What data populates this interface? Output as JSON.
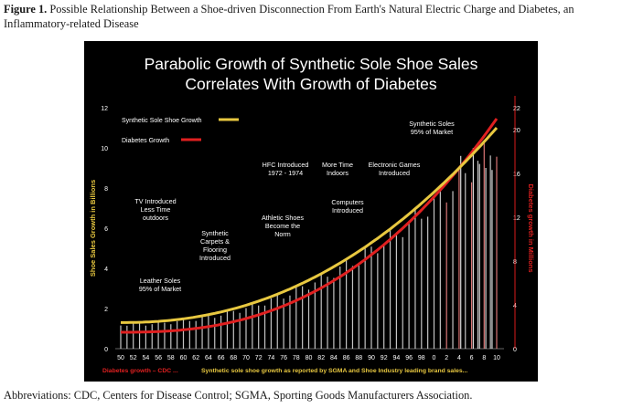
{
  "caption": {
    "label": "Figure 1.",
    "text": "Possible Relationship Between a Shoe-driven Disconnection From Earth's Natural Electric Charge and Diabetes, an Inflammatory-related Disease"
  },
  "footnote": "Abbreviations: CDC, Centers for Disease Control; SGMA, Sporting Goods Manufacturers Association.",
  "colors": {
    "shoe": "#e8c840",
    "diabetes": "#e02020",
    "bars": "#e6e6e6",
    "background": "#000000",
    "text": "#ffffff"
  },
  "chart_data": {
    "type": "bar+line",
    "title_line1": "Parabolic Growth of Synthetic Sole Shoe Sales",
    "title_line2": "Correlates With Growth of Diabetes",
    "ylabel_left": "Shoe Sales Growth in Billions",
    "ylabel_right": "Diabetes growth in Millions",
    "ylim_left": [
      0,
      12
    ],
    "ylim_right": [
      0,
      22
    ],
    "yticks_left": [
      "0",
      "2",
      "4",
      "6",
      "8",
      "10",
      "12"
    ],
    "yticks_right": [
      "0",
      "4",
      "8",
      "12",
      "16",
      "20",
      "22"
    ],
    "xticks": [
      "50",
      "52",
      "54",
      "56",
      "58",
      "60",
      "62",
      "64",
      "66",
      "68",
      "70",
      "72",
      "74",
      "76",
      "78",
      "80",
      "82",
      "84",
      "86",
      "88",
      "90",
      "92",
      "94",
      "96",
      "98",
      "0",
      "2",
      "4",
      "6",
      "8",
      "10"
    ],
    "legend": [
      {
        "name": "Synthetic Sole Shoe Growth"
      },
      {
        "name": "Diabetes Growth"
      }
    ],
    "series": [
      {
        "name": "Synthetic Sole Shoe Growth",
        "axis": "left",
        "start_year": 1950,
        "end_year": 2010,
        "start_value": 1.3,
        "end_value": 11.0,
        "shape": "parabolic"
      },
      {
        "name": "Diabetes Growth",
        "axis": "right",
        "start_year": 1950,
        "end_year": 2010,
        "start_value": 1.5,
        "end_value": 21.0,
        "shape": "parabolic"
      }
    ],
    "annotations": [
      {
        "text": "Leather Soles\n95% of Market"
      },
      {
        "text": "TV Introduced\nLess Time\noutdoors"
      },
      {
        "text": "Synthetic\nCarpets &\nFlooring\nIntroduced"
      },
      {
        "text": "Athletic Shoes\nBecome the\nNorm"
      },
      {
        "text": "HFC Introduced\n1972 - 1974"
      },
      {
        "text": "Computers\nIntroduced"
      },
      {
        "text": "More Time\nIndoors"
      },
      {
        "text": "Electronic Games\nIntroduced"
      },
      {
        "text": "Synthetic Soles\n95% of Market"
      }
    ],
    "source_red": "Diabetes growth – CDC ...",
    "source_yellow": "Synthetic sole shoe growth as reported by SGMA and Shoe Industry leading brand sales..."
  }
}
